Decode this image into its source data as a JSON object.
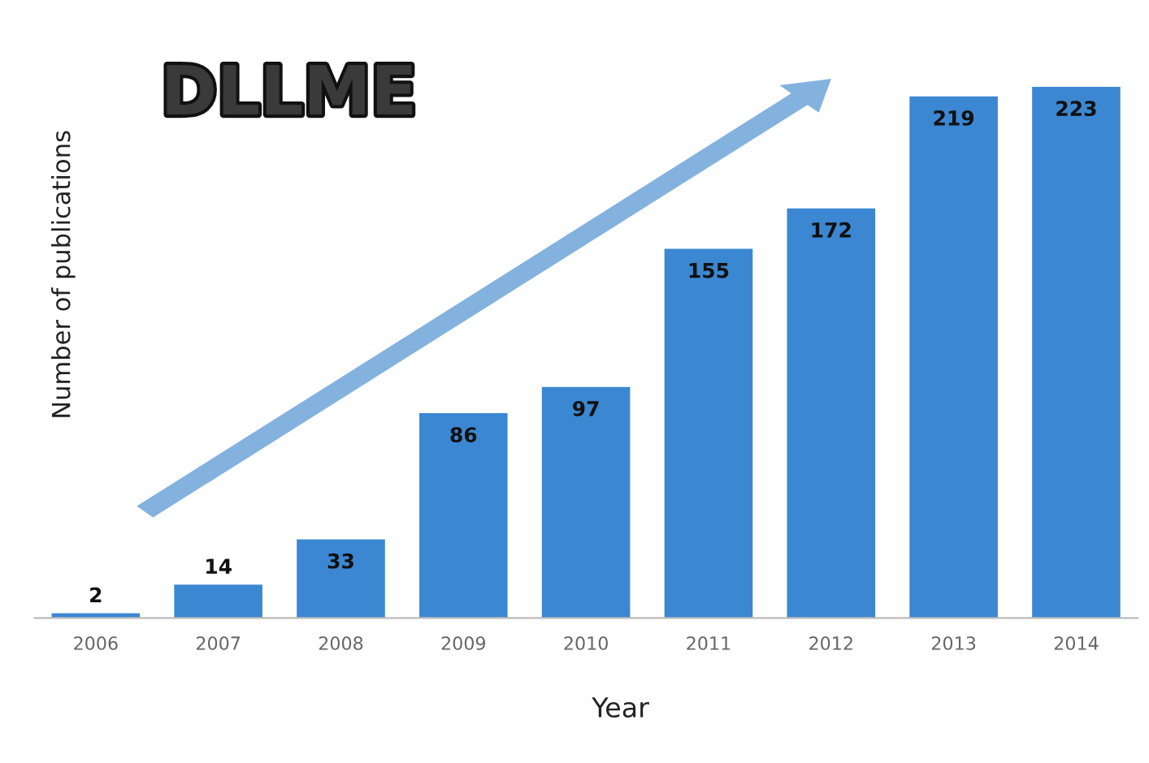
{
  "chart_data": {
    "type": "bar",
    "title": "DLLME",
    "xlabel": "Year",
    "ylabel": "Number of publications",
    "categories": [
      "2006",
      "2007",
      "2008",
      "2009",
      "2010",
      "2011",
      "2012",
      "2013",
      "2014"
    ],
    "values": [
      2,
      14,
      33,
      86,
      97,
      155,
      172,
      219,
      223
    ],
    "color": "#3c87d2",
    "data_labels": true,
    "grid": false,
    "legend": false
  }
}
